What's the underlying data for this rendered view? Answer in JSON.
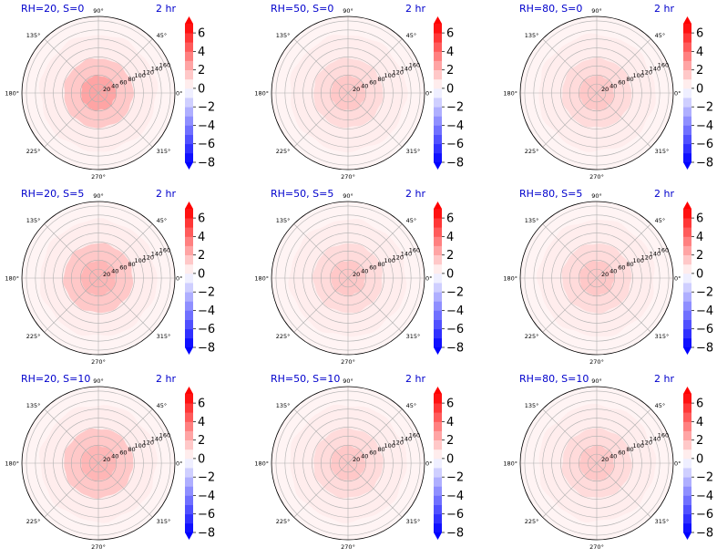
{
  "chart_data": [
    {
      "type": "polar-contour",
      "title": "RH=20, S=0",
      "time": "2 hr",
      "rings": [
        {
          "r": 0,
          "level": 2.5
        },
        {
          "r": 20,
          "level": 2.5
        },
        {
          "r": 55,
          "level": 1.5
        },
        {
          "r": 80,
          "level": 0.5
        }
      ],
      "outer_radius": 80
    },
    {
      "type": "polar-contour",
      "title": "RH=50, S=0",
      "time": "2 hr",
      "rings": [
        {
          "r": 0,
          "level": 2.0
        },
        {
          "r": 20,
          "level": 1.5
        },
        {
          "r": 55,
          "level": 1.0
        },
        {
          "r": 80,
          "level": 0.5
        }
      ],
      "outer_radius": 80
    },
    {
      "type": "polar-contour",
      "title": "RH=80, S=0",
      "time": "2 hr",
      "rings": [
        {
          "r": 0,
          "level": 2.0
        },
        {
          "r": 20,
          "level": 1.5
        },
        {
          "r": 55,
          "level": 1.0
        },
        {
          "r": 80,
          "level": 0.5
        }
      ],
      "outer_radius": 80
    },
    {
      "type": "polar-contour",
      "title": "RH=20, S=5",
      "time": "2 hr",
      "rings": [
        {
          "r": 0,
          "level": 2.5
        },
        {
          "r": 20,
          "level": 2.0
        },
        {
          "r": 55,
          "level": 1.5
        },
        {
          "r": 80,
          "level": 0.5
        }
      ],
      "outer_radius": 80
    },
    {
      "type": "polar-contour",
      "title": "RH=50, S=5",
      "time": "2 hr",
      "rings": [
        {
          "r": 0,
          "level": 2.0
        },
        {
          "r": 20,
          "level": 1.5
        },
        {
          "r": 55,
          "level": 1.0
        },
        {
          "r": 80,
          "level": 0.5
        }
      ],
      "outer_radius": 80
    },
    {
      "type": "polar-contour",
      "title": "RH=80, S=5",
      "time": "2 hr",
      "rings": [
        {
          "r": 0,
          "level": 2.0
        },
        {
          "r": 20,
          "level": 1.5
        },
        {
          "r": 55,
          "level": 1.0
        },
        {
          "r": 80,
          "level": 0.5
        }
      ],
      "outer_radius": 80
    },
    {
      "type": "polar-contour",
      "title": "RH=20, S=10",
      "time": "2 hr",
      "rings": [
        {
          "r": 0,
          "level": 2.5
        },
        {
          "r": 20,
          "level": 2.0
        },
        {
          "r": 55,
          "level": 1.5
        },
        {
          "r": 80,
          "level": 0.5
        }
      ],
      "outer_radius": 80
    },
    {
      "type": "polar-contour",
      "title": "RH=50, S=10",
      "time": "2 hr",
      "rings": [
        {
          "r": 0,
          "level": 2.0
        },
        {
          "r": 20,
          "level": 1.5
        },
        {
          "r": 55,
          "level": 1.0
        },
        {
          "r": 80,
          "level": 0.5
        }
      ],
      "outer_radius": 80
    },
    {
      "type": "polar-contour",
      "title": "RH=80, S=10",
      "time": "2 hr",
      "rings": [
        {
          "r": 0,
          "level": 2.0
        },
        {
          "r": 20,
          "level": 1.5
        },
        {
          "r": 55,
          "level": 1.0
        },
        {
          "r": 80,
          "level": 0.5
        }
      ],
      "outer_radius": 80
    }
  ],
  "angle_ticks": [
    "0°",
    "45°",
    "90°",
    "135°",
    "180°",
    "225°",
    "270°",
    "315°"
  ],
  "radial_ticks": [
    20,
    40,
    60,
    80,
    100,
    120,
    140,
    160
  ],
  "colorbar": {
    "ticks": [
      "6",
      "4",
      "2",
      "0",
      "−2",
      "−4",
      "−6",
      "−8"
    ],
    "range": [
      -8,
      7
    ],
    "levels": [
      -8,
      -7,
      -6,
      -5,
      -4,
      -3,
      -2,
      -1,
      0,
      1,
      2,
      3,
      4,
      5,
      6,
      7
    ],
    "colormap": "bwr",
    "low_color": "#0000ff",
    "mid_color": "#ffffff",
    "high_color": "#ff0000",
    "extend": "both"
  }
}
